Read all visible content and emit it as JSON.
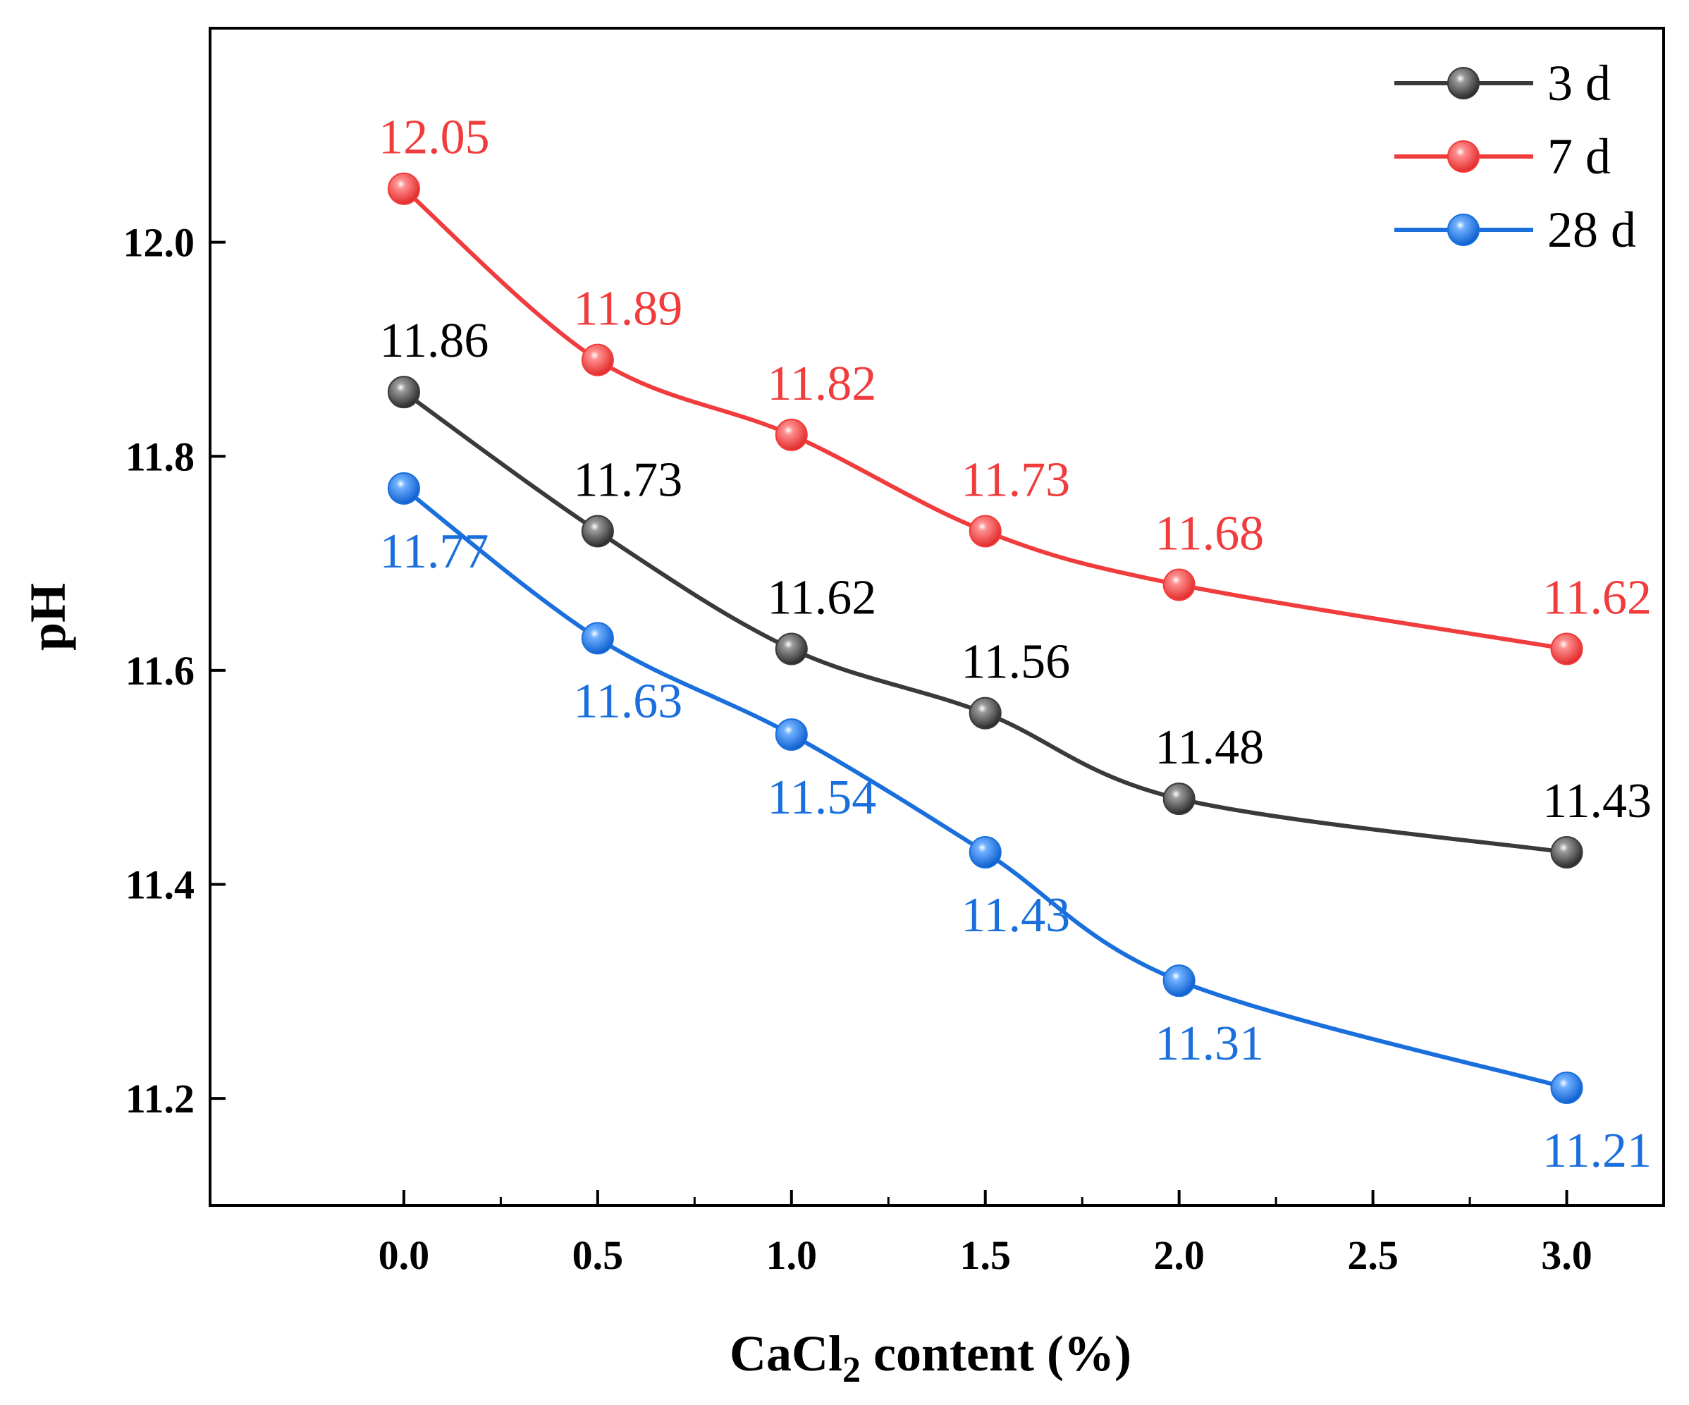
{
  "chart_data": {
    "type": "line",
    "title": "",
    "xlabel_main": "CaCl",
    "xlabel_sub": "2",
    "xlabel_rest": " content (%)",
    "ylabel": "pH",
    "xlim": [
      -0.5,
      3.25
    ],
    "ylim": [
      11.1,
      12.2
    ],
    "x_ticks": [
      0.0,
      0.5,
      1.0,
      1.5,
      2.0,
      2.5,
      3.0
    ],
    "x_tick_labels": [
      "0.0",
      "0.5",
      "1.0",
      "1.5",
      "2.0",
      "2.5",
      "3.0"
    ],
    "y_ticks": [
      11.2,
      11.4,
      11.6,
      11.8,
      12.0
    ],
    "y_tick_labels": [
      "11.2",
      "11.4",
      "11.6",
      "11.8",
      "12.0"
    ],
    "x": [
      0.0,
      0.5,
      1.0,
      1.5,
      2.0,
      3.0
    ],
    "legend_position": "top-right",
    "series": [
      {
        "name": "3 d",
        "color": "#3a3a3a",
        "label_color": "#000000",
        "values": [
          11.86,
          11.73,
          11.62,
          11.56,
          11.48,
          11.43
        ],
        "labels": [
          "11.86",
          "11.73",
          "11.62",
          "11.56",
          "11.48",
          "11.43"
        ],
        "label_side": [
          "above",
          "above",
          "above",
          "above",
          "above",
          "above"
        ]
      },
      {
        "name": "7 d",
        "color": "#f03c3c",
        "label_color": "#f03c3c",
        "values": [
          12.05,
          11.89,
          11.82,
          11.73,
          11.68,
          11.62
        ],
        "labels": [
          "12.05",
          "11.89",
          "11.82",
          "11.73",
          "11.68",
          "11.62"
        ],
        "label_side": [
          "above",
          "above",
          "above",
          "above",
          "above",
          "above"
        ]
      },
      {
        "name": "28 d",
        "color": "#1a6fdc",
        "label_color": "#1a6fdc",
        "values": [
          11.77,
          11.63,
          11.54,
          11.43,
          11.31,
          11.21
        ],
        "labels": [
          "11.77",
          "11.63",
          "11.54",
          "11.43",
          "11.31",
          "11.21"
        ],
        "label_side": [
          "below",
          "below",
          "below",
          "below",
          "below",
          "below"
        ]
      }
    ]
  }
}
